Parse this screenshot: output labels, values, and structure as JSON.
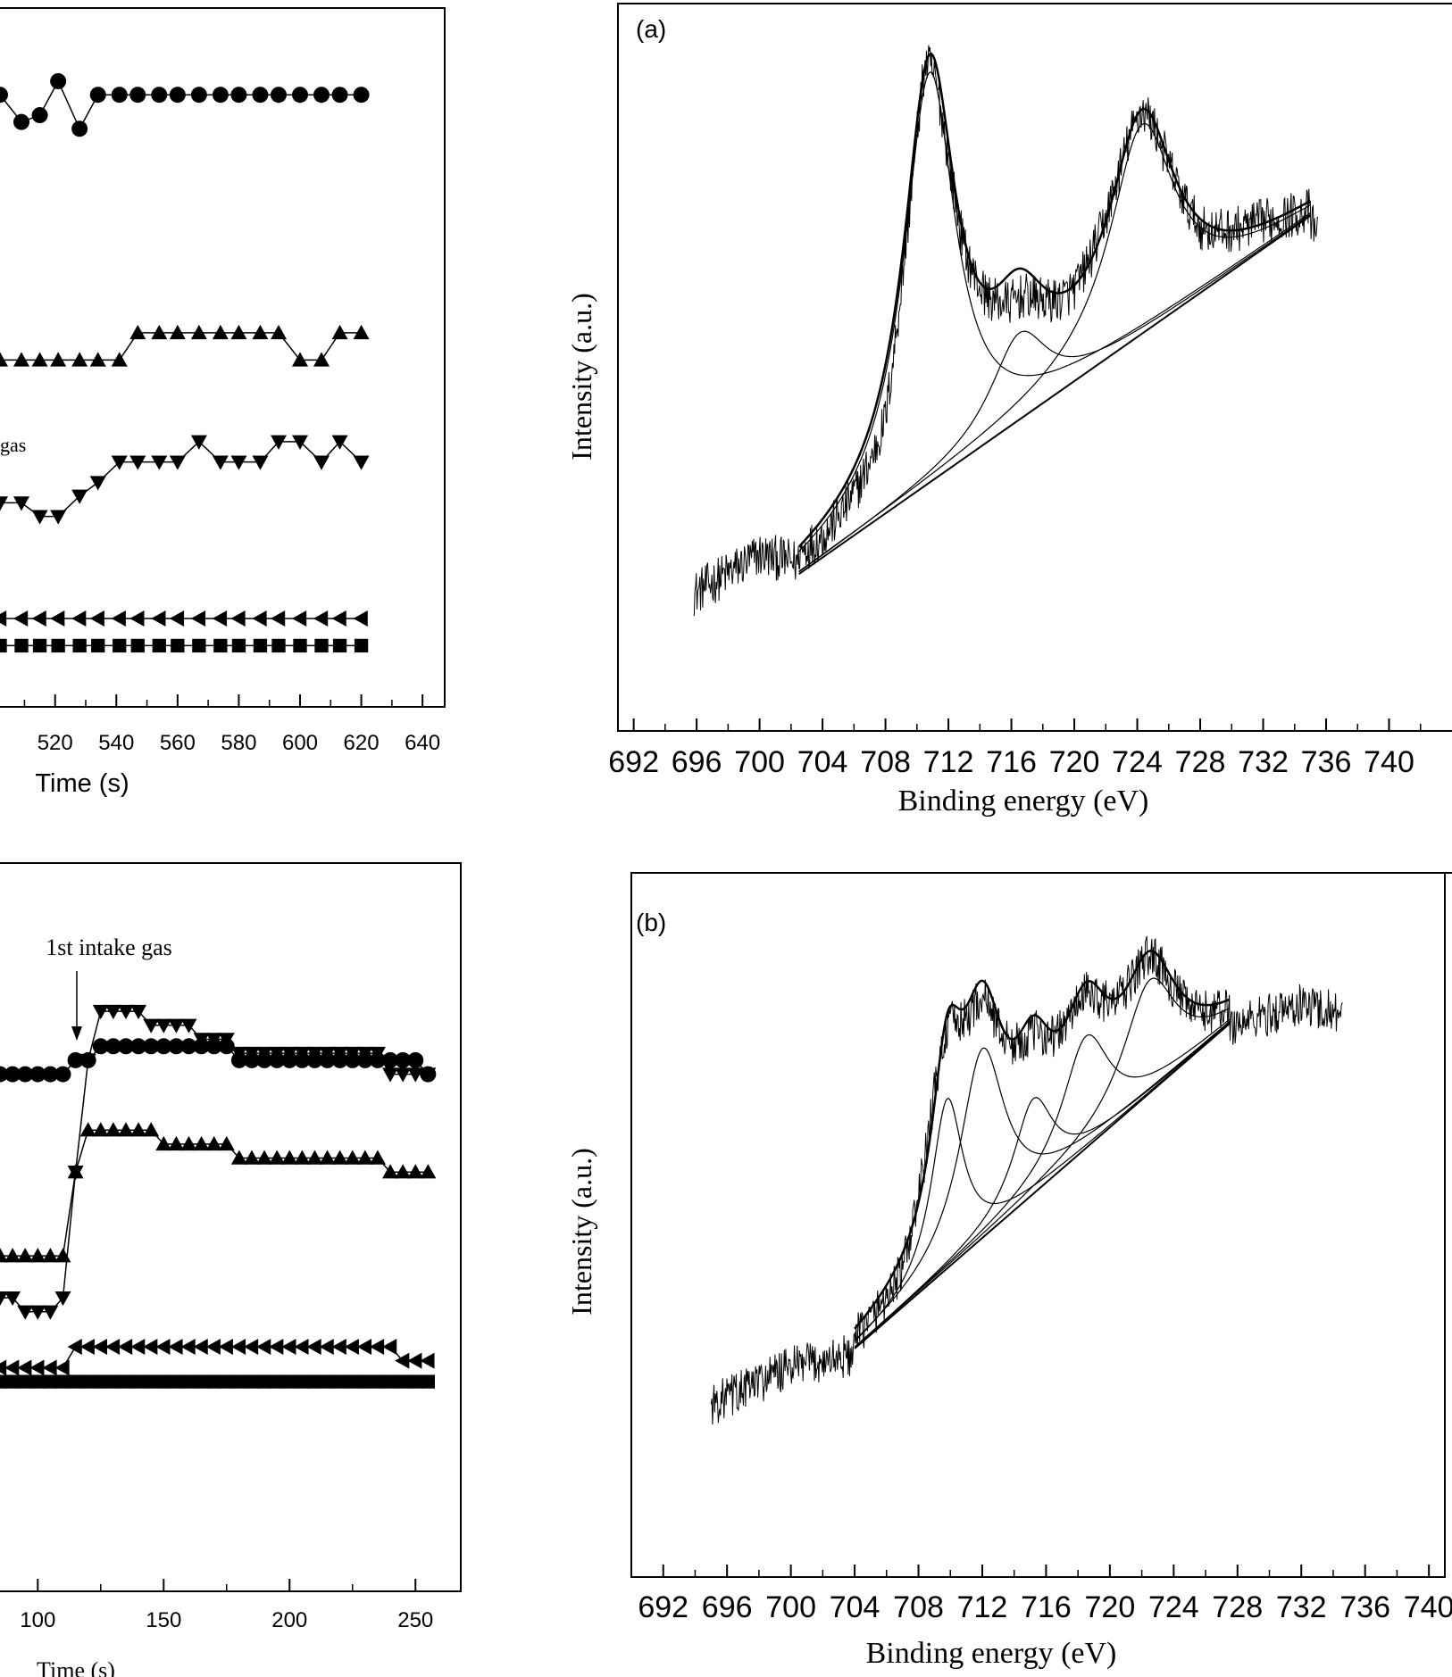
{
  "chart_data": [
    {
      "id": "left_top",
      "type": "line",
      "xlabel": "Time (s)",
      "x_ticks": [
        520,
        540,
        560,
        580,
        600,
        620,
        640
      ],
      "xlim": [
        502,
        642
      ],
      "ylim": [
        0,
        100
      ],
      "annotations": [
        {
          "text": "gas"
        }
      ],
      "series": [
        {
          "marker": "circle",
          "x": [
            502,
            509,
            515,
            521,
            528,
            534,
            541,
            547,
            554,
            560,
            567,
            574,
            580,
            587,
            593,
            600,
            607,
            613,
            620
          ],
          "y": [
            90,
            86,
            87,
            92,
            85,
            90,
            90,
            90,
            90,
            90,
            90,
            90,
            90,
            90,
            90,
            90,
            90,
            90,
            90
          ]
        },
        {
          "marker": "triangle-up",
          "x": [
            502,
            509,
            515,
            521,
            528,
            534,
            541,
            547,
            554,
            560,
            567,
            574,
            580,
            587,
            593,
            600,
            607,
            613,
            620
          ],
          "y": [
            51,
            51,
            51,
            51,
            51,
            51,
            51,
            55,
            55,
            55,
            55,
            55,
            55,
            55,
            55,
            51,
            51,
            55,
            55
          ]
        },
        {
          "marker": "triangle-down",
          "x": [
            502,
            509,
            515,
            521,
            528,
            534,
            541,
            547,
            554,
            560,
            567,
            574,
            580,
            587,
            593,
            600,
            607,
            613,
            620
          ],
          "y": [
            30,
            30,
            28,
            28,
            31,
            33,
            36,
            36,
            36,
            36,
            39,
            36,
            36,
            36,
            39,
            39,
            36,
            39,
            36
          ]
        },
        {
          "marker": "triangle-left",
          "x": [
            502,
            509,
            515,
            521,
            528,
            534,
            541,
            547,
            554,
            560,
            567,
            574,
            580,
            587,
            593,
            600,
            607,
            613,
            620
          ],
          "y": [
            13,
            13,
            13,
            13,
            13,
            13,
            13,
            13,
            13,
            13,
            13,
            13,
            13,
            13,
            13,
            13,
            13,
            13,
            13
          ]
        },
        {
          "marker": "square",
          "x": [
            502,
            509,
            515,
            521,
            528,
            534,
            541,
            547,
            554,
            560,
            567,
            574,
            580,
            587,
            593,
            600,
            607,
            613,
            620
          ],
          "y": [
            9,
            9,
            9,
            9,
            9,
            9,
            9,
            9,
            9,
            9,
            9,
            9,
            9,
            9,
            9,
            9,
            9,
            9,
            9
          ]
        }
      ]
    },
    {
      "id": "left_bottom",
      "type": "line",
      "xlabel": "Time (s)",
      "x_ticks": [
        100,
        150,
        200,
        250
      ],
      "xlim": [
        85,
        268
      ],
      "ylim": [
        0,
        100
      ],
      "annotations": [
        {
          "text": "1st intake gas",
          "x": 120
        }
      ],
      "series": [
        {
          "marker": "circle",
          "x": [
            85,
            90,
            95,
            100,
            105,
            110,
            115,
            120,
            125,
            130,
            135,
            140,
            145,
            150,
            155,
            160,
            165,
            170,
            175,
            180,
            185,
            190,
            195,
            200,
            205,
            210,
            215,
            220,
            225,
            230,
            235,
            240,
            245,
            250,
            255
          ],
          "y": [
            74,
            74,
            74,
            74,
            74,
            74,
            76,
            76,
            78,
            78,
            78,
            78,
            78,
            78,
            78,
            78,
            78,
            78,
            78,
            76,
            76,
            76,
            76,
            76,
            76,
            76,
            76,
            76,
            76,
            76,
            76,
            76,
            76,
            76,
            74
          ]
        },
        {
          "marker": "triangle-down",
          "x": [
            85,
            90,
            95,
            100,
            105,
            110,
            115,
            120,
            125,
            130,
            135,
            140,
            145,
            150,
            155,
            160,
            165,
            170,
            175,
            180,
            185,
            190,
            195,
            200,
            205,
            210,
            215,
            220,
            225,
            230,
            235,
            240,
            245,
            250,
            255
          ],
          "y": [
            42,
            42,
            40,
            40,
            40,
            42,
            60,
            76,
            83,
            83,
            83,
            83,
            81,
            81,
            81,
            81,
            79,
            79,
            79,
            77,
            77,
            77,
            77,
            77,
            77,
            77,
            77,
            77,
            77,
            77,
            77,
            74,
            74,
            74,
            74
          ]
        },
        {
          "marker": "triangle-up",
          "x": [
            85,
            90,
            95,
            100,
            105,
            110,
            115,
            120,
            125,
            130,
            135,
            140,
            145,
            150,
            155,
            160,
            165,
            170,
            175,
            180,
            185,
            190,
            195,
            200,
            205,
            210,
            215,
            220,
            225,
            230,
            235,
            240,
            245,
            250,
            255
          ],
          "y": [
            48,
            48,
            48,
            48,
            48,
            48,
            60,
            66,
            66,
            66,
            66,
            66,
            66,
            64,
            64,
            64,
            64,
            64,
            64,
            62,
            62,
            62,
            62,
            62,
            62,
            62,
            62,
            62,
            62,
            62,
            62,
            60,
            60,
            60,
            60
          ]
        },
        {
          "marker": "triangle-left",
          "x": [
            85,
            90,
            95,
            100,
            105,
            110,
            115,
            120,
            125,
            130,
            135,
            140,
            145,
            150,
            155,
            160,
            165,
            170,
            175,
            180,
            185,
            190,
            195,
            200,
            205,
            210,
            215,
            220,
            225,
            230,
            235,
            240,
            245,
            250,
            255
          ],
          "y": [
            32,
            32,
            32,
            32,
            32,
            32,
            35,
            35,
            35,
            35,
            35,
            35,
            35,
            35,
            35,
            35,
            35,
            35,
            35,
            35,
            35,
            35,
            35,
            35,
            35,
            35,
            35,
            35,
            35,
            35,
            35,
            35,
            33,
            33,
            33
          ]
        },
        {
          "marker": "square",
          "x": [
            85,
            90,
            95,
            100,
            105,
            110,
            115,
            120,
            125,
            130,
            135,
            140,
            145,
            150,
            155,
            160,
            165,
            170,
            175,
            180,
            185,
            190,
            195,
            200,
            205,
            210,
            215,
            220,
            225,
            230,
            235,
            240,
            245,
            250,
            255
          ],
          "y": [
            30,
            30,
            30,
            30,
            30,
            30,
            30,
            30,
            30,
            30,
            30,
            30,
            30,
            30,
            30,
            30,
            30,
            30,
            30,
            30,
            30,
            30,
            30,
            30,
            30,
            30,
            30,
            30,
            30,
            30,
            30,
            30,
            30,
            30,
            30
          ]
        }
      ]
    },
    {
      "id": "right_a",
      "type": "line",
      "panel_label": "(a)",
      "xlabel": "Binding energy (eV)",
      "ylabel": "Intensity (a.u.)",
      "x_ticks": [
        692,
        696,
        700,
        704,
        708,
        712,
        716,
        720,
        724,
        728,
        732,
        736,
        740
      ],
      "xlim": [
        691,
        744
      ],
      "ylim": [
        0,
        100
      ],
      "baseline": {
        "x": [
          702.5,
          735
        ],
        "y": [
          16,
          71
        ]
      },
      "peaks": [
        {
          "center": 710.8,
          "height": 93,
          "width": 2.0
        },
        {
          "center": 716.5,
          "height": 53,
          "width": 2.2
        },
        {
          "center": 724.3,
          "height": 85,
          "width": 2.5
        }
      ],
      "noisy_spectrum_x": [
        695.8,
        700,
        704,
        708,
        710.5,
        713,
        716,
        720,
        724.3,
        728,
        732,
        735.5
      ],
      "noisy_spectrum_y": [
        13,
        19,
        17,
        25,
        94,
        64,
        49,
        59,
        87,
        67,
        71,
        69
      ]
    },
    {
      "id": "right_b",
      "type": "line",
      "panel_label": "(b)",
      "xlabel": "Binding energy (eV)",
      "ylabel": "Intensity (a.u.)",
      "x_ticks": [
        692,
        696,
        700,
        704,
        708,
        712,
        716,
        720,
        724,
        728,
        732,
        736,
        740
      ],
      "xlim": [
        690,
        741
      ],
      "ylim": [
        0,
        100
      ],
      "baseline": {
        "x": [
          704,
          727.5
        ],
        "y": [
          27,
          79
        ]
      },
      "peaks": [
        {
          "center": 709.8,
          "height": 67,
          "width": 1.2
        },
        {
          "center": 712.0,
          "height": 75,
          "width": 1.7
        },
        {
          "center": 715.2,
          "height": 67,
          "width": 1.5
        },
        {
          "center": 718.5,
          "height": 77,
          "width": 1.8
        },
        {
          "center": 722.5,
          "height": 86,
          "width": 2.0
        }
      ],
      "noisy_spectrum_x": [
        695,
        700,
        704,
        707,
        709,
        712,
        715,
        718,
        720,
        722.5,
        725,
        728,
        732,
        734.6
      ],
      "noisy_spectrum_y": [
        18,
        24,
        26,
        35,
        72,
        78,
        72,
        80,
        81,
        89,
        79,
        79,
        82,
        81
      ]
    }
  ]
}
